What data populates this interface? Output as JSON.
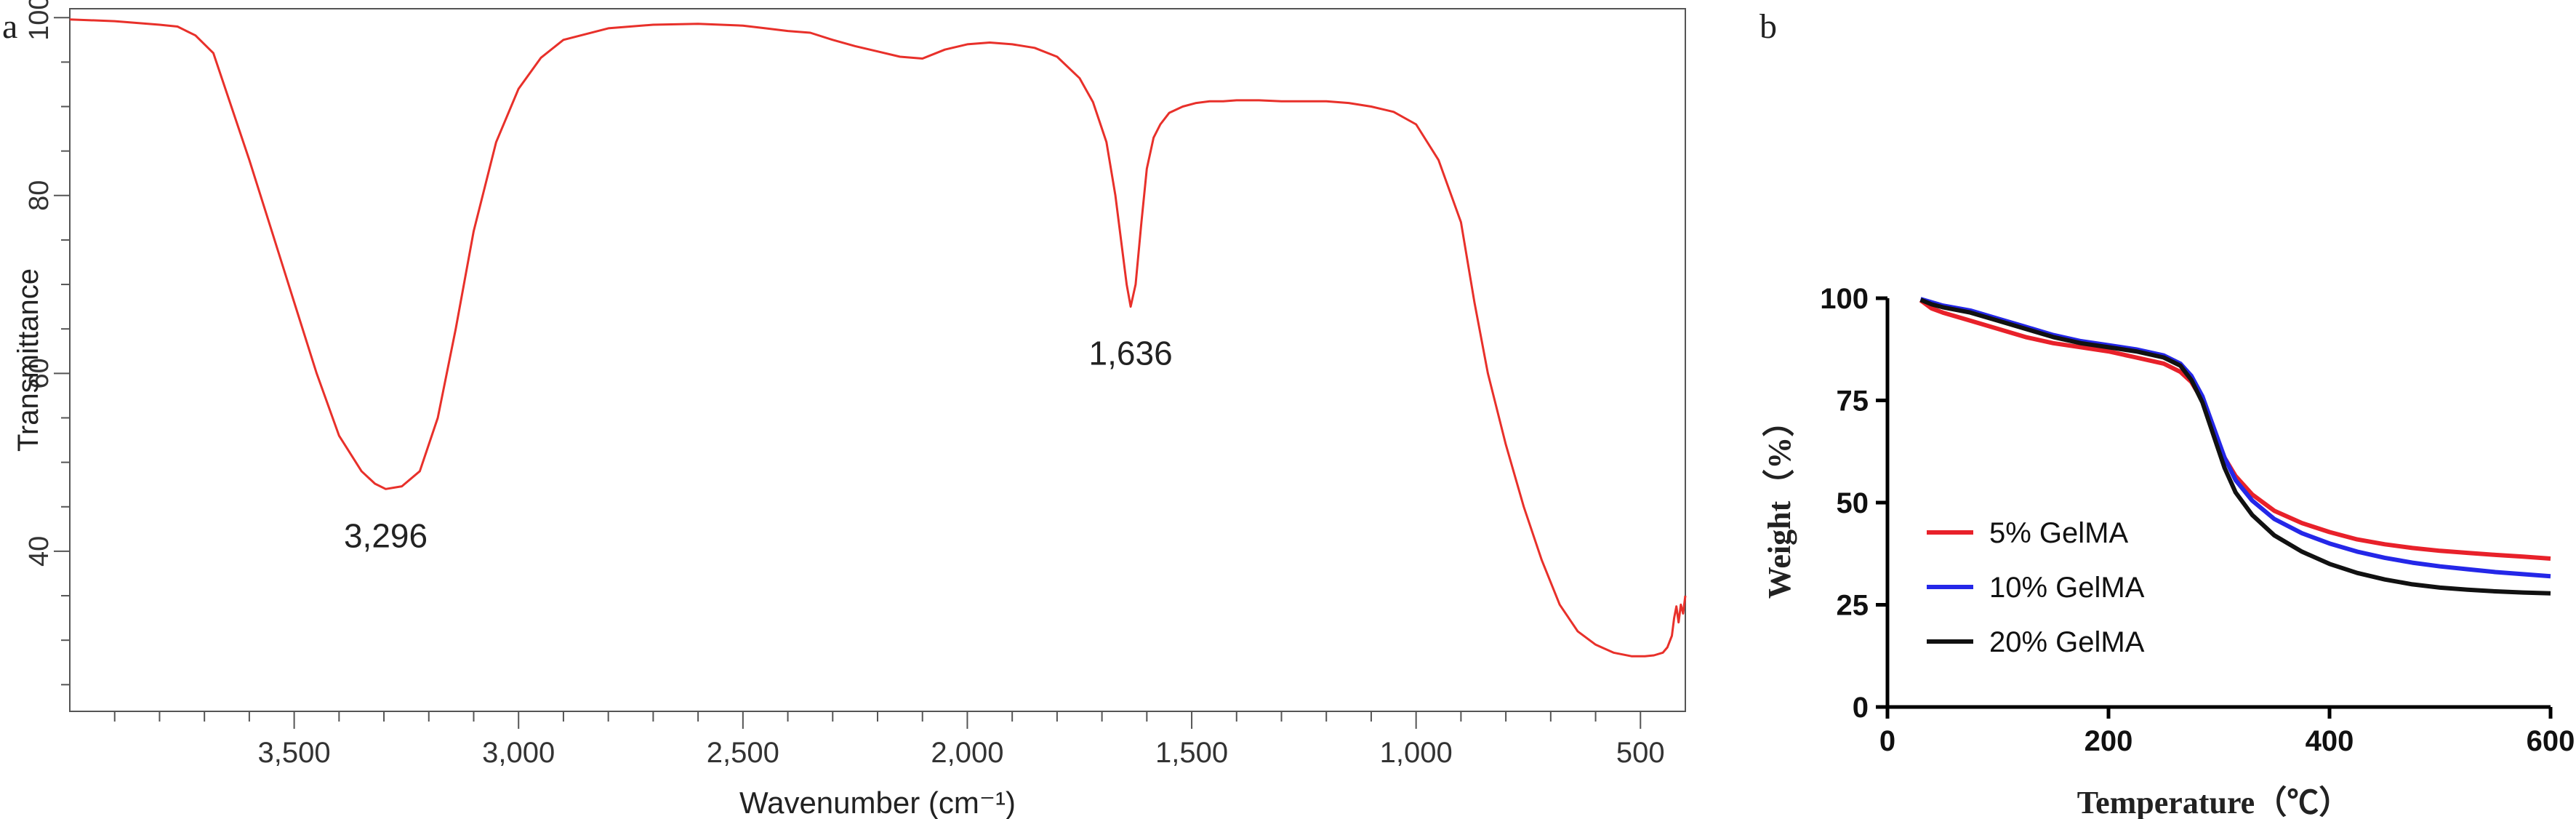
{
  "chart_data": [
    {
      "type": "line",
      "panel_label": "a",
      "xlabel": "Wavenumber (cm⁻¹)",
      "ylabel": "Transmittance",
      "xlim": [
        4000,
        400
      ],
      "x_reversed": true,
      "ylim": [
        22,
        101
      ],
      "grid": false,
      "xticks": [
        3500,
        3000,
        2500,
        2000,
        1500,
        1000,
        500
      ],
      "xtick_labels": [
        "3,500",
        "3,000",
        "2,500",
        "2,000",
        "1,500",
        "1,000",
        "500"
      ],
      "yticks": [
        40,
        60,
        80,
        100
      ],
      "ytick_labels": [
        "40",
        "60",
        "80",
        "100"
      ],
      "annotations": [
        {
          "text": "3,296",
          "x": 3296,
          "y": 47
        },
        {
          "text": "1,636",
          "x": 1636,
          "y": 67.5
        }
      ],
      "series": [
        {
          "color": "#e8302a",
          "x": [
            4000,
            3900,
            3800,
            3760,
            3720,
            3680,
            3640,
            3600,
            3550,
            3500,
            3450,
            3400,
            3350,
            3320,
            3296,
            3260,
            3220,
            3180,
            3140,
            3100,
            3050,
            3000,
            2950,
            2900,
            2800,
            2700,
            2600,
            2500,
            2450,
            2400,
            2350,
            2300,
            2250,
            2200,
            2150,
            2100,
            2050,
            2000,
            1950,
            1900,
            1850,
            1800,
            1750,
            1720,
            1690,
            1670,
            1655,
            1645,
            1636,
            1625,
            1612,
            1600,
            1585,
            1570,
            1550,
            1520,
            1490,
            1460,
            1430,
            1400,
            1350,
            1300,
            1250,
            1200,
            1150,
            1100,
            1050,
            1000,
            950,
            900,
            870,
            840,
            800,
            760,
            720,
            680,
            640,
            600,
            560,
            520,
            490,
            470,
            450,
            440,
            430,
            425,
            420,
            415,
            410,
            405,
            400
          ],
          "values": [
            99.8,
            99.6,
            99.2,
            99.0,
            98.0,
            96.0,
            90.0,
            84.0,
            76.0,
            68.0,
            60.0,
            53.0,
            49.0,
            47.6,
            47.0,
            47.3,
            49.0,
            55.0,
            65.0,
            76.0,
            86.0,
            92.0,
            95.5,
            97.5,
            98.8,
            99.2,
            99.3,
            99.1,
            98.8,
            98.5,
            98.3,
            97.5,
            96.8,
            96.2,
            95.6,
            95.4,
            96.4,
            97.0,
            97.2,
            97.0,
            96.6,
            95.6,
            93.2,
            90.5,
            86.0,
            80.0,
            74.0,
            70.0,
            67.5,
            70.0,
            77.0,
            83.0,
            86.5,
            88.0,
            89.3,
            90.0,
            90.4,
            90.6,
            90.6,
            90.7,
            90.7,
            90.6,
            90.6,
            90.6,
            90.4,
            90.0,
            89.4,
            88.0,
            84.0,
            77.0,
            68.0,
            60.0,
            52.0,
            45.0,
            39.0,
            34.0,
            31.0,
            29.5,
            28.6,
            28.2,
            28.2,
            28.3,
            28.6,
            29.2,
            30.5,
            32.5,
            33.8,
            32.0,
            34.0,
            33.0,
            35.0
          ]
        }
      ]
    },
    {
      "type": "line",
      "panel_label": "b",
      "xlabel": "Temperature（℃）",
      "ylabel": "Weight（%）",
      "xlim": [
        0,
        600
      ],
      "ylim": [
        0,
        100
      ],
      "grid": false,
      "xticks": [
        0,
        200,
        400,
        600
      ],
      "xtick_labels": [
        "0",
        "200",
        "400",
        "600"
      ],
      "yticks": [
        0,
        25,
        50,
        75,
        100
      ],
      "ytick_labels": [
        "0",
        "25",
        "50",
        "75",
        "100"
      ],
      "legend_position": "bottom-left",
      "x": [
        30,
        40,
        50,
        75,
        100,
        125,
        150,
        175,
        200,
        225,
        250,
        265,
        275,
        285,
        295,
        305,
        315,
        330,
        350,
        375,
        400,
        425,
        450,
        475,
        500,
        525,
        550,
        575,
        600
      ],
      "series": [
        {
          "name": "5% GelMA",
          "color": "#e8212a",
          "values": [
            99.5,
            97.5,
            96.5,
            94.5,
            92.5,
            90.5,
            89.0,
            88.0,
            87.0,
            85.5,
            84.0,
            82.0,
            79.5,
            75.0,
            68.0,
            61.0,
            56.5,
            52.0,
            48.0,
            45.0,
            42.8,
            41.0,
            39.8,
            38.9,
            38.2,
            37.7,
            37.2,
            36.8,
            36.3
          ]
        },
        {
          "name": "10% GelMA",
          "color": "#2427e8",
          "values": [
            99.8,
            99.0,
            98.2,
            97.0,
            95.0,
            93.0,
            91.0,
            89.5,
            88.5,
            87.5,
            86.0,
            84.0,
            81.0,
            76.0,
            68.5,
            61.0,
            55.5,
            50.5,
            46.0,
            42.5,
            40.0,
            38.0,
            36.5,
            35.3,
            34.4,
            33.7,
            33.0,
            32.5,
            32.0
          ]
        },
        {
          "name": "20% GelMA",
          "color": "#111111",
          "values": [
            99.6,
            98.5,
            97.8,
            96.5,
            94.5,
            92.5,
            90.5,
            89.0,
            88.0,
            87.0,
            85.5,
            83.5,
            80.0,
            74.5,
            66.5,
            58.5,
            52.5,
            47.0,
            42.0,
            38.0,
            35.0,
            32.8,
            31.2,
            30.0,
            29.2,
            28.7,
            28.3,
            28.0,
            27.8
          ]
        }
      ]
    }
  ]
}
